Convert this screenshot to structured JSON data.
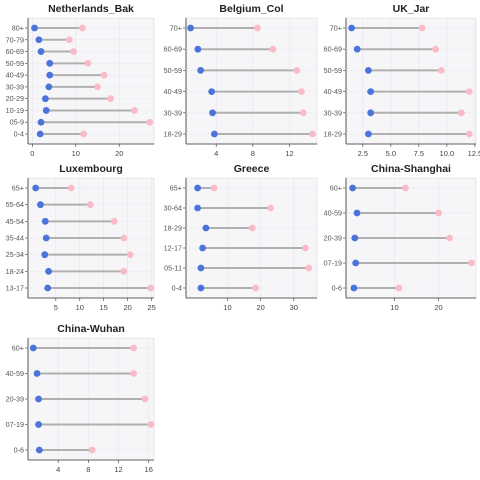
{
  "colors": {
    "background": "#ffffff",
    "panel": "#f6f6f9",
    "panel_border": "#dcdcdc",
    "grid": "#ffffff",
    "segment": "#b0b0b0",
    "start_point": "#4a74d9",
    "end_point": "#f9bcc6"
  },
  "chart_data": [
    {
      "type": "dumbbell",
      "title": "Netherlands_Bak",
      "categories": [
        "80+",
        "70-79",
        "60-69",
        "50-59",
        "40-49",
        "30-39",
        "20-29",
        "10-19",
        "05-9",
        "0-4"
      ],
      "start": [
        0.5,
        1.5,
        2,
        4,
        4,
        3.8,
        3,
        3.2,
        2,
        1.8
      ],
      "end": [
        11.5,
        8.5,
        9.5,
        12.8,
        16.5,
        15,
        18,
        23.5,
        27,
        11.8
      ],
      "xlim": [
        -1,
        28
      ],
      "xticks": [
        0,
        10,
        20
      ]
    },
    {
      "type": "dumbbell",
      "title": "Belgium_Col",
      "categories": [
        "70+",
        "60-69",
        "50-59",
        "40-49",
        "30-39",
        "18-29"
      ],
      "start": [
        1.2,
        2,
        2.3,
        3.5,
        3.6,
        3.8
      ],
      "end": [
        8.5,
        10.2,
        12.8,
        13.3,
        13.5,
        14.5
      ],
      "xlim": [
        0.7,
        15
      ],
      "xticks": [
        4,
        8,
        12
      ]
    },
    {
      "type": "dumbbell",
      "title": "UK_Jar",
      "categories": [
        "70+",
        "60-69",
        "50-59",
        "40-49",
        "30-39",
        "18-29"
      ],
      "start": [
        1.5,
        2,
        3,
        3.2,
        3.2,
        3
      ],
      "end": [
        7.8,
        9,
        9.5,
        12,
        11.3,
        12
      ],
      "xlim": [
        1,
        12.6
      ],
      "xticks": [
        2.5,
        5.0,
        7.5,
        10.0,
        12.5
      ],
      "xtick_labels": [
        "2.5",
        "5.0",
        "7.5",
        "10.0",
        "12.5"
      ]
    },
    {
      "type": "dumbbell",
      "title": "Luxembourg",
      "categories": [
        "65+",
        "55-64",
        "45-54",
        "35-44",
        "25-34",
        "18-24",
        "13-17"
      ],
      "start": [
        0.8,
        1.8,
        2.8,
        3,
        2.7,
        3.5,
        3.3
      ],
      "end": [
        8.2,
        12.2,
        17.2,
        19.2,
        20.5,
        19.2,
        24.8
      ],
      "xlim": [
        -0.8,
        25.5
      ],
      "xticks": [
        5,
        10,
        15,
        20,
        25
      ]
    },
    {
      "type": "dumbbell",
      "title": "Greece",
      "categories": [
        "65+",
        "30-64",
        "18-29",
        "12-17",
        "05-11",
        "0-4"
      ],
      "start": [
        1,
        1,
        3.5,
        2.5,
        2,
        2
      ],
      "end": [
        6,
        23,
        17.5,
        33.5,
        34.5,
        18.5
      ],
      "xlim": [
        -2.5,
        37
      ],
      "xticks": [
        10,
        20,
        30
      ]
    },
    {
      "type": "dumbbell",
      "title": "China-Shanghai",
      "categories": [
        "60+",
        "40-59",
        "20-39",
        "07-19",
        "0-6"
      ],
      "start": [
        0.5,
        1.5,
        1,
        1.2,
        0.8
      ],
      "end": [
        12.5,
        20,
        22.5,
        27.5,
        11
      ],
      "xlim": [
        -1,
        28.5
      ],
      "xticks": [
        10,
        20
      ]
    },
    {
      "type": "dumbbell",
      "title": "China-Wuhan",
      "categories": [
        "60+",
        "40-59",
        "20-39",
        "07-19",
        "0-6"
      ],
      "start": [
        0.7,
        1.2,
        1.4,
        1.4,
        1.5
      ],
      "end": [
        14,
        14,
        15.5,
        16.3,
        8.5
      ],
      "xlim": [
        0,
        16.7
      ],
      "xticks": [
        4,
        8,
        12,
        16
      ]
    }
  ]
}
